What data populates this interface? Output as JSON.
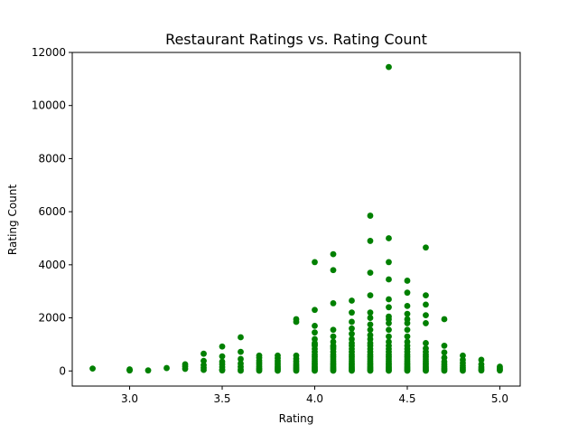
{
  "chart_data": {
    "type": "scatter",
    "title": "Restaurant Ratings vs. Rating Count",
    "xlabel": "Rating",
    "ylabel": "Rating Count",
    "xlim": [
      2.69,
      5.11
    ],
    "ylim": [
      -570,
      12000
    ],
    "xticks": [
      "3.0",
      "3.5",
      "4.0",
      "4.5",
      "5.0"
    ],
    "xtick_values": [
      3.0,
      3.5,
      4.0,
      4.5,
      5.0
    ],
    "yticks": [
      "0",
      "2000",
      "4000",
      "6000",
      "8000",
      "10000",
      "12000"
    ],
    "ytick_values": [
      0,
      2000,
      4000,
      6000,
      8000,
      10000,
      12000
    ],
    "grid": false,
    "marker_color": "#008000",
    "series": [
      {
        "x": [
          2.8,
          3.0,
          3.0,
          3.0,
          3.1,
          3.2,
          3.3,
          3.3,
          3.3,
          3.4,
          3.4,
          3.4,
          3.4,
          3.4,
          3.5,
          3.5,
          3.5,
          3.5,
          3.5,
          3.5,
          3.5,
          3.6,
          3.6,
          3.6,
          3.6,
          3.6,
          3.6,
          3.6,
          3.7,
          3.7,
          3.7,
          3.7,
          3.7,
          3.7,
          3.7,
          3.7,
          3.7,
          3.8,
          3.8,
          3.8,
          3.8,
          3.8,
          3.8,
          3.8,
          3.8,
          3.8,
          3.9,
          3.9,
          3.9,
          3.9,
          3.9,
          3.9,
          3.9,
          3.9,
          3.9,
          3.9,
          3.9,
          4.0,
          4.0,
          4.0,
          4.0,
          4.0,
          4.0,
          4.0,
          4.0,
          4.0,
          4.0,
          4.0,
          4.0,
          4.0,
          4.0,
          4.0,
          4.0,
          4.0,
          4.0,
          4.0,
          4.0,
          4.0,
          4.1,
          4.1,
          4.1,
          4.1,
          4.1,
          4.1,
          4.1,
          4.1,
          4.1,
          4.1,
          4.1,
          4.1,
          4.1,
          4.1,
          4.1,
          4.1,
          4.1,
          4.1,
          4.1,
          4.1,
          4.1,
          4.2,
          4.2,
          4.2,
          4.2,
          4.2,
          4.2,
          4.2,
          4.2,
          4.2,
          4.2,
          4.2,
          4.2,
          4.2,
          4.2,
          4.2,
          4.2,
          4.2,
          4.2,
          4.2,
          4.2,
          4.2,
          4.3,
          4.3,
          4.3,
          4.3,
          4.3,
          4.3,
          4.3,
          4.3,
          4.3,
          4.3,
          4.3,
          4.3,
          4.3,
          4.3,
          4.3,
          4.3,
          4.3,
          4.3,
          4.3,
          4.3,
          4.3,
          4.3,
          4.3,
          4.3,
          4.3,
          4.4,
          4.4,
          4.4,
          4.4,
          4.4,
          4.4,
          4.4,
          4.4,
          4.4,
          4.4,
          4.4,
          4.4,
          4.4,
          4.4,
          4.4,
          4.4,
          4.4,
          4.4,
          4.4,
          4.4,
          4.4,
          4.4,
          4.4,
          4.4,
          4.4,
          4.4,
          4.5,
          4.5,
          4.5,
          4.5,
          4.5,
          4.5,
          4.5,
          4.5,
          4.5,
          4.5,
          4.5,
          4.5,
          4.5,
          4.5,
          4.5,
          4.5,
          4.5,
          4.5,
          4.5,
          4.5,
          4.5,
          4.5,
          4.5,
          4.6,
          4.6,
          4.6,
          4.6,
          4.6,
          4.6,
          4.6,
          4.6,
          4.6,
          4.6,
          4.6,
          4.6,
          4.6,
          4.6,
          4.6,
          4.6,
          4.6,
          4.6,
          4.6,
          4.7,
          4.7,
          4.7,
          4.7,
          4.7,
          4.7,
          4.7,
          4.7,
          4.7,
          4.7,
          4.8,
          4.8,
          4.8,
          4.8,
          4.8,
          4.8,
          4.8,
          4.9,
          4.9,
          4.9,
          4.9,
          4.9,
          5.0,
          5.0,
          5.0,
          5.0
        ],
        "y": [
          90,
          20,
          40,
          60,
          20,
          110,
          80,
          170,
          250,
          40,
          120,
          220,
          380,
          650,
          20,
          60,
          150,
          250,
          350,
          550,
          920,
          10,
          60,
          160,
          280,
          450,
          720,
          1270,
          10,
          50,
          100,
          170,
          250,
          320,
          400,
          500,
          580,
          10,
          60,
          100,
          160,
          230,
          300,
          380,
          480,
          580,
          10,
          50,
          100,
          150,
          210,
          280,
          360,
          460,
          580,
          1850,
          1950,
          10,
          40,
          80,
          130,
          180,
          240,
          300,
          370,
          450,
          530,
          620,
          720,
          830,
          950,
          1050,
          1200,
          1450,
          1700,
          2300,
          4100,
          1000,
          10,
          40,
          80,
          130,
          180,
          240,
          300,
          370,
          450,
          530,
          620,
          720,
          830,
          950,
          1100,
          1300,
          1550,
          2550,
          3800,
          4400,
          900,
          10,
          40,
          80,
          130,
          180,
          240,
          300,
          370,
          450,
          530,
          620,
          720,
          830,
          950,
          1050,
          1200,
          1400,
          1600,
          1850,
          2650,
          2200,
          10,
          40,
          80,
          130,
          180,
          240,
          300,
          370,
          450,
          530,
          620,
          720,
          830,
          950,
          1050,
          1200,
          1350,
          1550,
          1750,
          2000,
          2200,
          2850,
          3700,
          4900,
          5850,
          10,
          40,
          80,
          130,
          180,
          240,
          300,
          370,
          450,
          530,
          620,
          720,
          830,
          950,
          1100,
          1300,
          1550,
          1800,
          2050,
          2400,
          2700,
          3450,
          4100,
          5000,
          11450,
          1950,
          10,
          40,
          80,
          130,
          180,
          240,
          300,
          370,
          450,
          530,
          620,
          720,
          830,
          950,
          1100,
          1300,
          1550,
          1800,
          2150,
          2450,
          2950,
          3400,
          1950,
          10,
          40,
          80,
          130,
          180,
          240,
          300,
          370,
          450,
          530,
          620,
          720,
          850,
          1050,
          1800,
          2100,
          2500,
          2850,
          4650,
          10,
          50,
          100,
          170,
          250,
          350,
          500,
          700,
          950,
          1950,
          10,
          60,
          120,
          200,
          300,
          420,
          580,
          20,
          80,
          150,
          250,
          420,
          20,
          60,
          100,
          160
        ]
      }
    ]
  }
}
